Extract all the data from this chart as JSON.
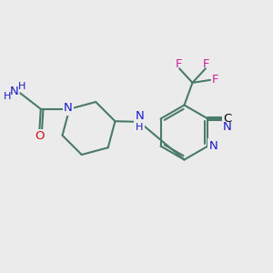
{
  "bg_color": "#ebebeb",
  "bond_color": "#4a7a6a",
  "N_color": "#1a1acc",
  "O_color": "#cc1010",
  "F_color": "#cc2299",
  "lw": 1.5,
  "fs": 9.5,
  "fig_w": 3.0,
  "fig_h": 3.0,
  "dpi": 100,
  "xlim": [
    0,
    10
  ],
  "ylim": [
    0,
    10
  ]
}
